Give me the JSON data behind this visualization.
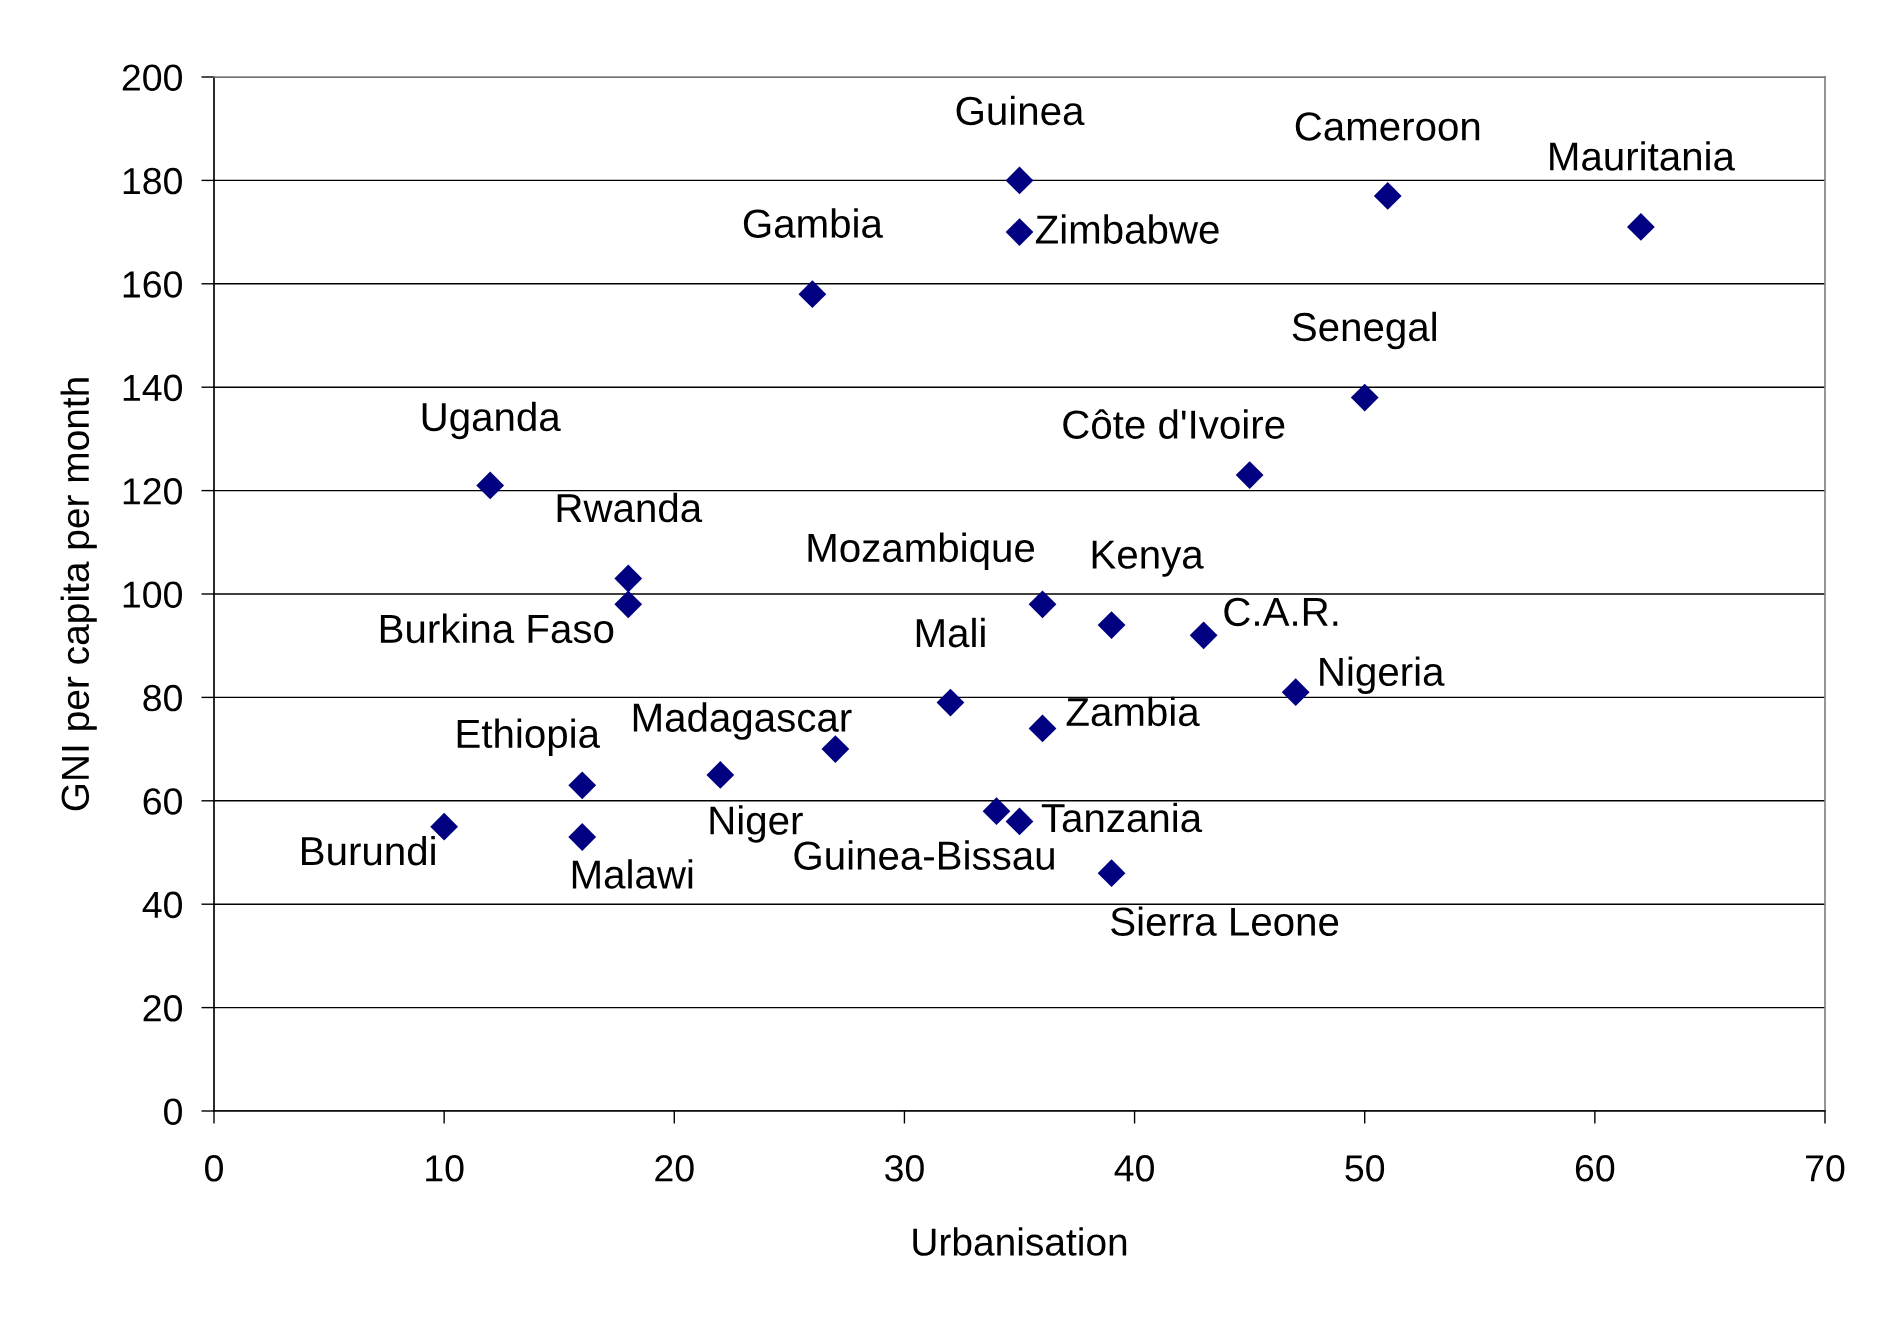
{
  "chart_data": {
    "type": "scatter",
    "xlabel": "Urbanisation",
    "ylabel": "GNI per capita per month",
    "series": [
      {
        "color": "#000080",
        "x": [
          12,
          18,
          18,
          16,
          16,
          10,
          22,
          27,
          26,
          35,
          35,
          51,
          62,
          50,
          45,
          36,
          39,
          43,
          47,
          32,
          36,
          34,
          35,
          39
        ],
        "values": [
          121,
          103,
          98,
          63,
          53,
          55,
          65,
          70,
          158,
          180,
          170,
          177,
          171,
          138,
          123,
          98,
          94,
          92,
          81,
          79,
          74,
          58,
          56,
          46
        ]
      }
    ],
    "marker": "diamond",
    "xlim": [
      0,
      70
    ],
    "xticks": [
      0,
      10,
      20,
      30,
      40,
      50,
      60,
      70
    ],
    "ylim": [
      0,
      200
    ],
    "yticks": [
      0,
      20,
      40,
      60,
      80,
      100,
      120,
      140,
      160,
      180,
      200
    ],
    "grid": "y",
    "annotations": [
      {
        "text": "Uganda",
        "x": 12,
        "y": 121
      },
      {
        "text": "Rwanda",
        "x": 18,
        "y": 103
      },
      {
        "text": "Burkina Faso",
        "x": 18,
        "y": 98
      },
      {
        "text": "Ethiopia",
        "x": 16,
        "y": 63
      },
      {
        "text": "Malawi",
        "x": 16,
        "y": 53
      },
      {
        "text": "Burundi",
        "x": 10,
        "y": 55
      },
      {
        "text": "Niger",
        "x": 22,
        "y": 65
      },
      {
        "text": "Madagascar",
        "x": 27,
        "y": 70
      },
      {
        "text": "Gambia",
        "x": 26,
        "y": 158
      },
      {
        "text": "Guinea",
        "x": 35,
        "y": 180
      },
      {
        "text": "Zimbabwe",
        "x": 35,
        "y": 170
      },
      {
        "text": "Cameroon",
        "x": 51,
        "y": 177
      },
      {
        "text": "Mauritania",
        "x": 62,
        "y": 171
      },
      {
        "text": "Senegal",
        "x": 50,
        "y": 138
      },
      {
        "text": "Côte d'Ivoire",
        "x": 45,
        "y": 123
      },
      {
        "text": "Mozambique",
        "x": 36,
        "y": 98
      },
      {
        "text": "Kenya",
        "x": 39,
        "y": 94
      },
      {
        "text": "C.A.R.",
        "x": 43,
        "y": 92
      },
      {
        "text": "Nigeria",
        "x": 47,
        "y": 81
      },
      {
        "text": "Mali",
        "x": 32,
        "y": 79
      },
      {
        "text": "Zambia",
        "x": 36,
        "y": 74
      },
      {
        "text": "Guinea-Bissau",
        "x": 34,
        "y": 58
      },
      {
        "text": "Tanzania",
        "x": 35,
        "y": 56
      },
      {
        "text": "Sierra Leone",
        "x": 39,
        "y": 46
      }
    ]
  }
}
